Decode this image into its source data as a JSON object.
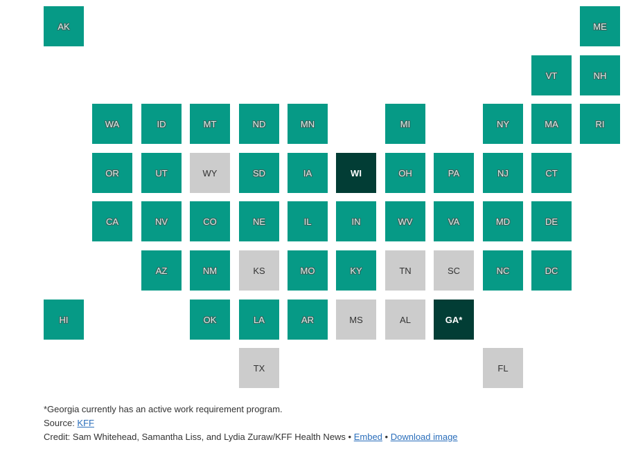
{
  "colors": {
    "expansion": "#069a86",
    "work_requirement": "#023d35",
    "none": "#cccccc"
  },
  "states": [
    {
      "abbr": "AK",
      "row": 0,
      "col": 0,
      "cat": "expansion"
    },
    {
      "abbr": "ME",
      "row": 0,
      "col": 11,
      "cat": "expansion"
    },
    {
      "abbr": "VT",
      "row": 1,
      "col": 10,
      "cat": "expansion"
    },
    {
      "abbr": "NH",
      "row": 1,
      "col": 11,
      "cat": "expansion"
    },
    {
      "abbr": "WA",
      "row": 2,
      "col": 1,
      "cat": "expansion"
    },
    {
      "abbr": "ID",
      "row": 2,
      "col": 2,
      "cat": "expansion"
    },
    {
      "abbr": "MT",
      "row": 2,
      "col": 3,
      "cat": "expansion"
    },
    {
      "abbr": "ND",
      "row": 2,
      "col": 4,
      "cat": "expansion"
    },
    {
      "abbr": "MN",
      "row": 2,
      "col": 5,
      "cat": "expansion"
    },
    {
      "abbr": "MI",
      "row": 2,
      "col": 7,
      "cat": "expansion"
    },
    {
      "abbr": "NY",
      "row": 2,
      "col": 9,
      "cat": "expansion"
    },
    {
      "abbr": "MA",
      "row": 2,
      "col": 10,
      "cat": "expansion"
    },
    {
      "abbr": "RI",
      "row": 2,
      "col": 11,
      "cat": "expansion"
    },
    {
      "abbr": "OR",
      "row": 3,
      "col": 1,
      "cat": "expansion"
    },
    {
      "abbr": "UT",
      "row": 3,
      "col": 2,
      "cat": "expansion"
    },
    {
      "abbr": "WY",
      "row": 3,
      "col": 3,
      "cat": "none"
    },
    {
      "abbr": "SD",
      "row": 3,
      "col": 4,
      "cat": "expansion"
    },
    {
      "abbr": "IA",
      "row": 3,
      "col": 5,
      "cat": "expansion"
    },
    {
      "abbr": "WI",
      "row": 3,
      "col": 6,
      "cat": "work"
    },
    {
      "abbr": "OH",
      "row": 3,
      "col": 7,
      "cat": "expansion"
    },
    {
      "abbr": "PA",
      "row": 3,
      "col": 8,
      "cat": "expansion"
    },
    {
      "abbr": "NJ",
      "row": 3,
      "col": 9,
      "cat": "expansion"
    },
    {
      "abbr": "CT",
      "row": 3,
      "col": 10,
      "cat": "expansion"
    },
    {
      "abbr": "CA",
      "row": 4,
      "col": 1,
      "cat": "expansion"
    },
    {
      "abbr": "NV",
      "row": 4,
      "col": 2,
      "cat": "expansion"
    },
    {
      "abbr": "CO",
      "row": 4,
      "col": 3,
      "cat": "expansion"
    },
    {
      "abbr": "NE",
      "row": 4,
      "col": 4,
      "cat": "expansion"
    },
    {
      "abbr": "IL",
      "row": 4,
      "col": 5,
      "cat": "expansion"
    },
    {
      "abbr": "IN",
      "row": 4,
      "col": 6,
      "cat": "expansion"
    },
    {
      "abbr": "WV",
      "row": 4,
      "col": 7,
      "cat": "expansion"
    },
    {
      "abbr": "VA",
      "row": 4,
      "col": 8,
      "cat": "expansion"
    },
    {
      "abbr": "MD",
      "row": 4,
      "col": 9,
      "cat": "expansion"
    },
    {
      "abbr": "DE",
      "row": 4,
      "col": 10,
      "cat": "expansion"
    },
    {
      "abbr": "AZ",
      "row": 5,
      "col": 2,
      "cat": "expansion"
    },
    {
      "abbr": "NM",
      "row": 5,
      "col": 3,
      "cat": "expansion"
    },
    {
      "abbr": "KS",
      "row": 5,
      "col": 4,
      "cat": "none"
    },
    {
      "abbr": "MO",
      "row": 5,
      "col": 5,
      "cat": "expansion"
    },
    {
      "abbr": "KY",
      "row": 5,
      "col": 6,
      "cat": "expansion"
    },
    {
      "abbr": "TN",
      "row": 5,
      "col": 7,
      "cat": "none"
    },
    {
      "abbr": "SC",
      "row": 5,
      "col": 8,
      "cat": "none"
    },
    {
      "abbr": "NC",
      "row": 5,
      "col": 9,
      "cat": "expansion"
    },
    {
      "abbr": "DC",
      "row": 5,
      "col": 10,
      "cat": "expansion"
    },
    {
      "abbr": "HI",
      "row": 6,
      "col": 0,
      "cat": "expansion"
    },
    {
      "abbr": "OK",
      "row": 6,
      "col": 3,
      "cat": "expansion"
    },
    {
      "abbr": "LA",
      "row": 6,
      "col": 4,
      "cat": "expansion"
    },
    {
      "abbr": "AR",
      "row": 6,
      "col": 5,
      "cat": "expansion"
    },
    {
      "abbr": "MS",
      "row": 6,
      "col": 6,
      "cat": "none"
    },
    {
      "abbr": "AL",
      "row": 6,
      "col": 7,
      "cat": "none"
    },
    {
      "abbr": "GA*",
      "row": 6,
      "col": 8,
      "cat": "work"
    },
    {
      "abbr": "TX",
      "row": 7,
      "col": 4,
      "cat": "none"
    },
    {
      "abbr": "FL",
      "row": 7,
      "col": 9,
      "cat": "none"
    }
  ],
  "footer": {
    "note": "*Georgia currently has an active work requirement program.",
    "source_prefix": "Source: ",
    "source_link": "KFF",
    "credit_prefix": "Credit: Sam Whitehead, Samantha Liss, and Lydia Zuraw/KFF Health News • ",
    "embed_link": "Embed",
    "separator": " • ",
    "download_link": "Download image"
  }
}
